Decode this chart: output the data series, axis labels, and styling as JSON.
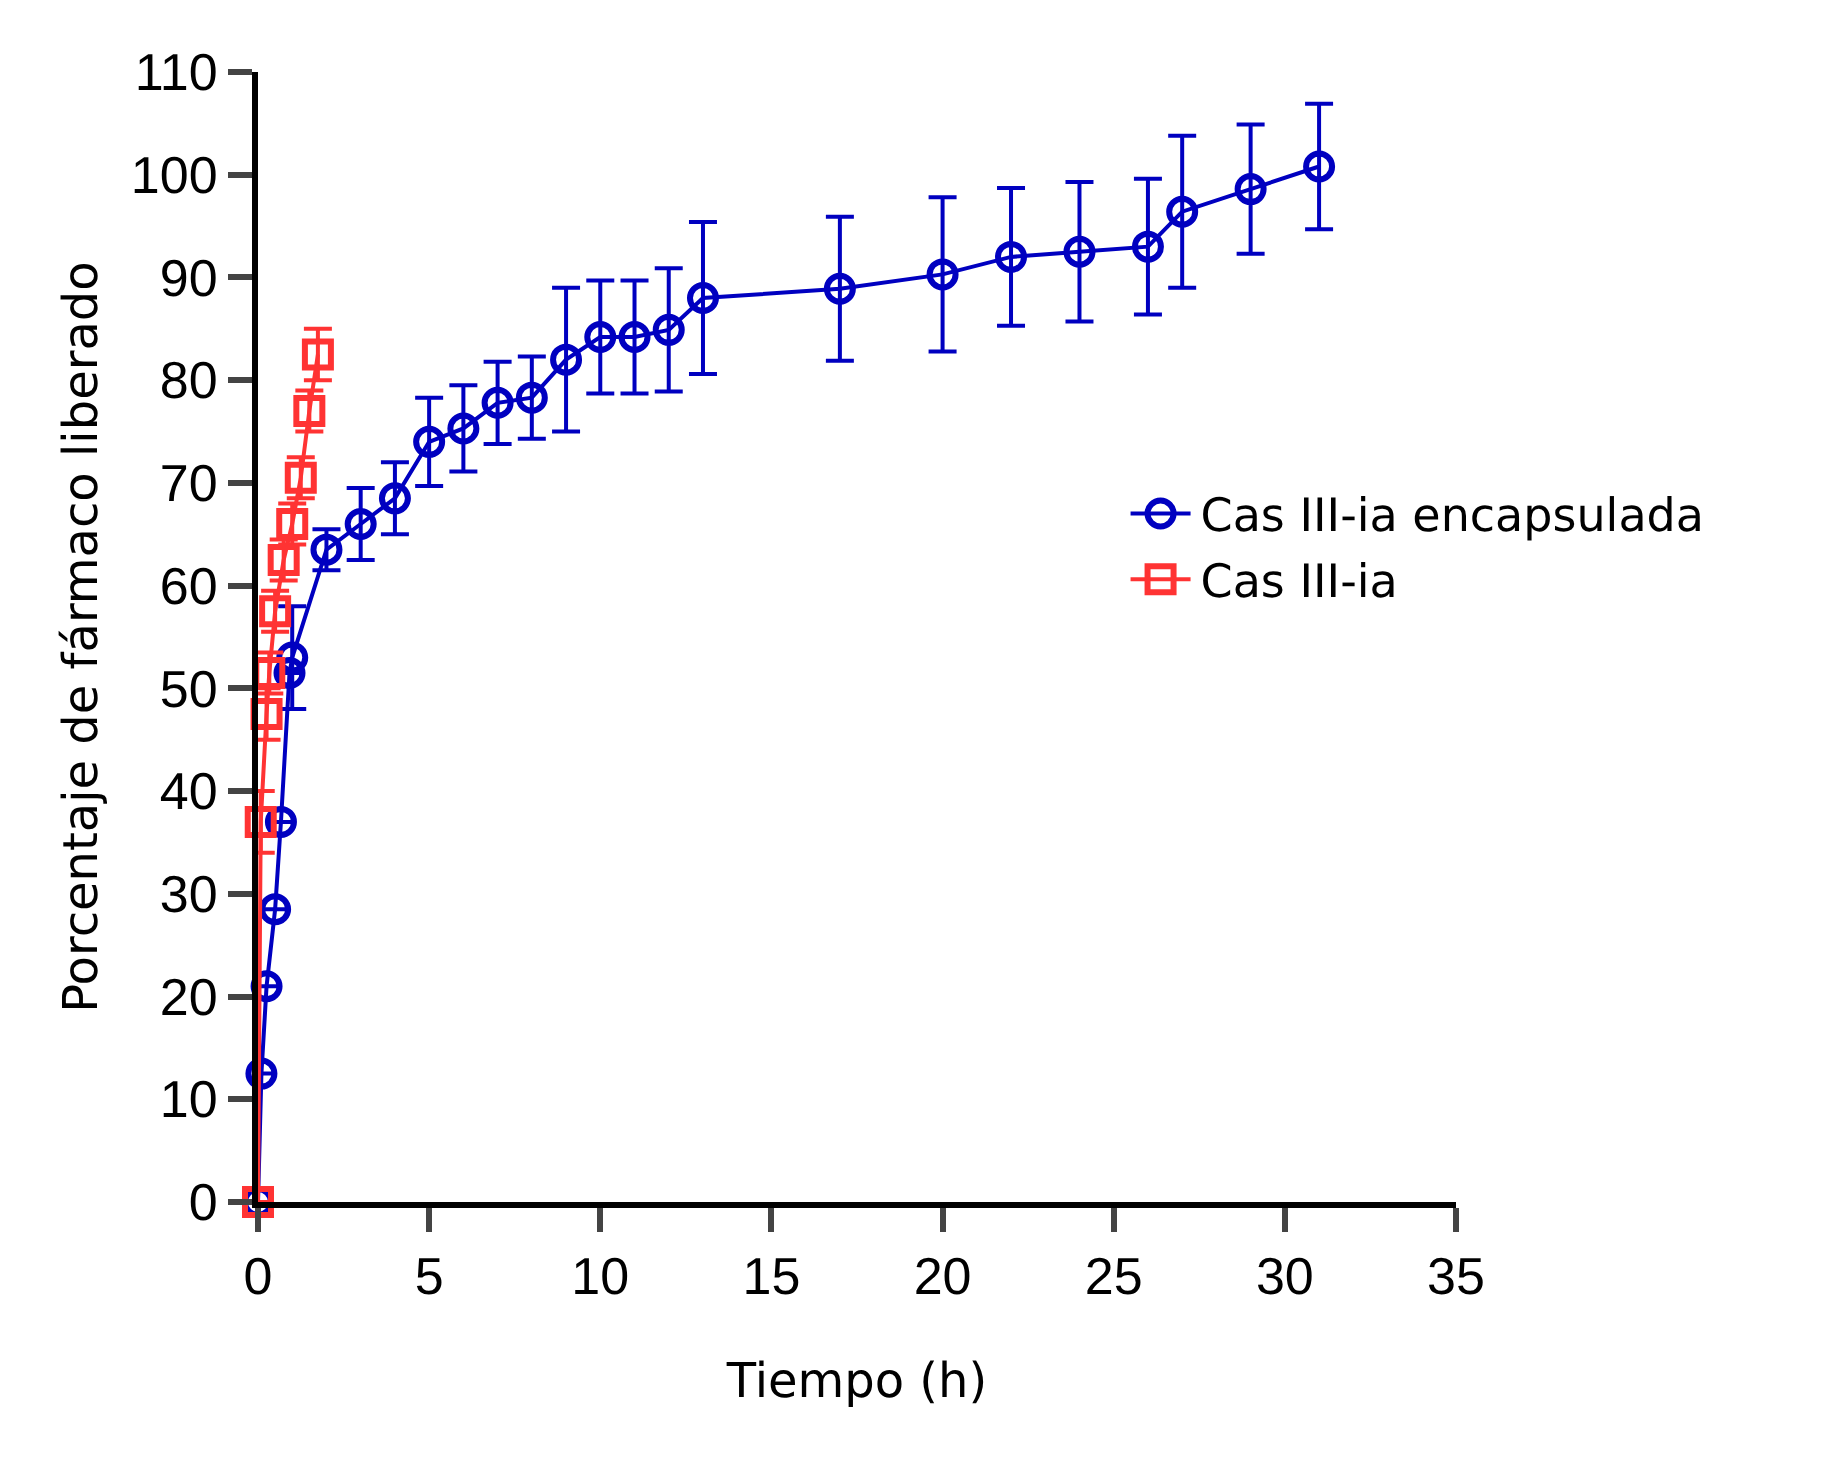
{
  "chart_data": {
    "type": "line",
    "xlabel": "Tiempo (h)",
    "ylabel": "Porcentaje de fármaco liberado",
    "xlim": [
      0,
      35
    ],
    "xticks": [
      0,
      5,
      10,
      15,
      20,
      25,
      30,
      35
    ],
    "ylim": [
      0,
      110
    ],
    "yticks": [
      0,
      10,
      20,
      30,
      40,
      50,
      60,
      70,
      80,
      90,
      100,
      110
    ],
    "grid": false,
    "legend": "right",
    "series": [
      {
        "name": "Cas III-ia encapsulada",
        "color": "#0000c0",
        "marker": "circle",
        "x": [
          0,
          0.1,
          0.25,
          0.5,
          0.67,
          0.92,
          1,
          2,
          3,
          4,
          5,
          6,
          7,
          8,
          9,
          10,
          11,
          12,
          13,
          17,
          20,
          22,
          24,
          26,
          27,
          29,
          31
        ],
        "values": [
          0,
          12.5,
          21,
          28.5,
          37,
          51.5,
          53,
          63.5,
          66,
          68.5,
          74,
          75.3,
          77.8,
          78.3,
          82,
          84.2,
          84.2,
          84.9,
          88,
          88.9,
          90.3,
          92,
          92.5,
          93,
          96.4,
          98.6,
          100.8
        ],
        "errors": [
          null,
          null,
          null,
          null,
          null,
          null,
          5,
          2,
          3.5,
          3.5,
          4.3,
          4.2,
          4,
          4,
          7,
          5.5,
          5.5,
          6,
          7.4,
          7,
          7.5,
          6.7,
          6.8,
          6.6,
          7.4,
          6.3,
          6.1
        ]
      },
      {
        "name": "Cas III-ia",
        "color": "#ff3333",
        "marker": "square",
        "x": [
          0,
          0.08,
          0.25,
          0.33,
          0.5,
          0.75,
          1,
          1.25,
          1.5,
          1.75
        ],
        "values": [
          0,
          37,
          47.5,
          51.5,
          57.5,
          62.5,
          66,
          70.5,
          77,
          82.5
        ],
        "errors": [
          null,
          3,
          2.5,
          2,
          2,
          2,
          2,
          2,
          2,
          2.5
        ]
      }
    ]
  }
}
